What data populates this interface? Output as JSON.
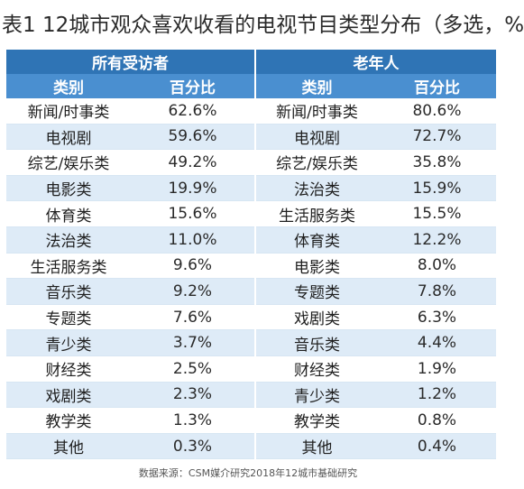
{
  "title": "表1  12城市观众喜欢收看的电视节目类型分布（多选，%",
  "groups": [
    "所有受访者",
    "老年人"
  ],
  "columns": [
    "类别",
    "百分比",
    "类别",
    "百分比"
  ],
  "rows": [
    {
      "cat_all": "新闻/时事类",
      "pct_all": "62.6%",
      "cat_old": "新闻/时事类",
      "pct_old": "80.6%"
    },
    {
      "cat_all": "电视剧",
      "pct_all": "59.6%",
      "cat_old": "电视剧",
      "pct_old": "72.7%"
    },
    {
      "cat_all": "综艺/娱乐类",
      "pct_all": "49.2%",
      "cat_old": "综艺/娱乐类",
      "pct_old": "35.8%"
    },
    {
      "cat_all": "电影类",
      "pct_all": "19.9%",
      "cat_old": "法治类",
      "pct_old": "15.9%"
    },
    {
      "cat_all": "体育类",
      "pct_all": "15.6%",
      "cat_old": "生活服务类",
      "pct_old": "15.5%"
    },
    {
      "cat_all": "法治类",
      "pct_all": "11.0%",
      "cat_old": "体育类",
      "pct_old": "12.2%"
    },
    {
      "cat_all": "生活服务类",
      "pct_all": "9.6%",
      "cat_old": "电影类",
      "pct_old": "8.0%"
    },
    {
      "cat_all": "音乐类",
      "pct_all": "9.2%",
      "cat_old": "专题类",
      "pct_old": "7.8%"
    },
    {
      "cat_all": "专题类",
      "pct_all": "7.6%",
      "cat_old": "戏剧类",
      "pct_old": "6.3%"
    },
    {
      "cat_all": "青少类",
      "pct_all": "3.7%",
      "cat_old": "音乐类",
      "pct_old": "4.4%"
    },
    {
      "cat_all": "财经类",
      "pct_all": "2.5%",
      "cat_old": "财经类",
      "pct_old": "1.9%"
    },
    {
      "cat_all": "戏剧类",
      "pct_all": "2.3%",
      "cat_old": "青少类",
      "pct_old": "1.2%"
    },
    {
      "cat_all": "教学类",
      "pct_all": "1.3%",
      "cat_old": "教学类",
      "pct_old": "0.8%"
    },
    {
      "cat_all": "其他",
      "pct_all": "0.3%",
      "cat_old": "其他",
      "pct_old": "0.4%"
    }
  ],
  "source": "数据来源：CSM媒介研究2018年12城市基础研究",
  "colors": {
    "header_dark": "#2f74b5",
    "header_light": "#4a8fd0",
    "row_alt": "#deebf7"
  }
}
